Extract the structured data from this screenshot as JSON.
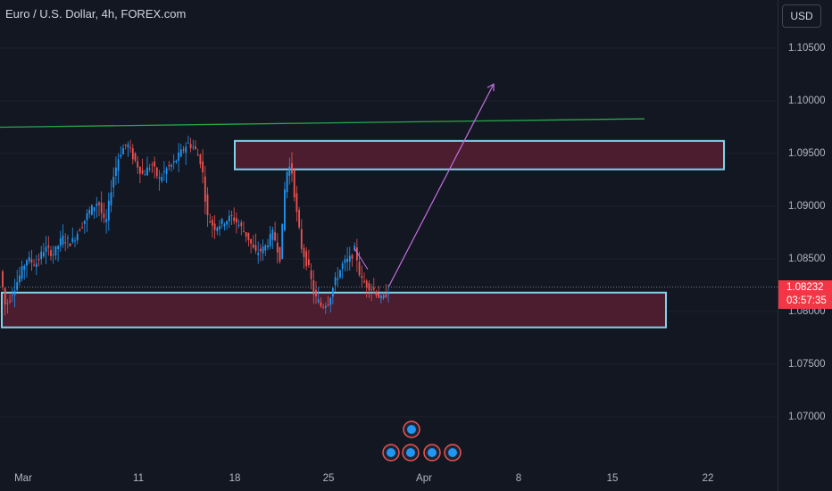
{
  "header": {
    "symbol": "Euro / U.S. Dollar",
    "interval": "4h",
    "exchange": "FOREX.com",
    "currency": "USD"
  },
  "price_axis": {
    "ticks": [
      "1.10500",
      "1.10000",
      "1.09500",
      "1.09000",
      "1.08500",
      "1.08000",
      "1.07500",
      "1.07000"
    ],
    "current_price": "1.08232",
    "countdown": "03:57:35"
  },
  "time_axis": {
    "ticks": [
      "Mar",
      "11",
      "18",
      "25",
      "Apr",
      "8",
      "15",
      "22"
    ]
  },
  "colors": {
    "background": "#131722",
    "bullish": "#2196f3",
    "bearish": "#ef5350",
    "zone_fill": "#5b1f33",
    "zone_border": "#7fd3ea",
    "trendline": "#26a64a",
    "projection": "#c36fe0",
    "price_badge": "#f23645"
  },
  "chart_data": {
    "type": "candlestick",
    "symbol": "EURUSD",
    "timeframe": "4h",
    "ylim": [
      1.068,
      1.1098
    ],
    "price_path": [
      [
        0,
        1.084
      ],
      [
        6,
        1.0805
      ],
      [
        12,
        1.0815
      ],
      [
        20,
        1.083
      ],
      [
        30,
        1.085
      ],
      [
        40,
        1.0845
      ],
      [
        50,
        1.086
      ],
      [
        60,
        1.0855
      ],
      [
        70,
        1.087
      ],
      [
        80,
        1.0865
      ],
      [
        90,
        1.088
      ],
      [
        100,
        1.0895
      ],
      [
        110,
        1.0905
      ],
      [
        118,
        1.088
      ],
      [
        126,
        1.0925
      ],
      [
        134,
        1.095
      ],
      [
        142,
        1.096
      ],
      [
        150,
        1.0945
      ],
      [
        160,
        1.093
      ],
      [
        170,
        1.094
      ],
      [
        178,
        1.0925
      ],
      [
        186,
        1.0935
      ],
      [
        194,
        1.094
      ],
      [
        202,
        1.095
      ],
      [
        210,
        1.096
      ],
      [
        218,
        1.0955
      ],
      [
        226,
        1.094
      ],
      [
        232,
        1.089
      ],
      [
        240,
        1.088
      ],
      [
        250,
        1.0885
      ],
      [
        260,
        1.089
      ],
      [
        270,
        1.088
      ],
      [
        278,
        1.087
      ],
      [
        286,
        1.0855
      ],
      [
        296,
        1.086
      ],
      [
        306,
        1.0875
      ],
      [
        314,
        1.085
      ],
      [
        320,
        1.093
      ],
      [
        326,
        1.094
      ],
      [
        332,
        1.0895
      ],
      [
        338,
        1.086
      ],
      [
        346,
        1.084
      ],
      [
        352,
        1.0815
      ],
      [
        360,
        1.0805
      ],
      [
        368,
        1.081
      ],
      [
        376,
        1.083
      ],
      [
        384,
        1.0845
      ],
      [
        392,
        1.085
      ],
      [
        398,
        1.086
      ],
      [
        404,
        1.083
      ],
      [
        412,
        1.0825
      ],
      [
        420,
        1.082
      ],
      [
        428,
        1.081
      ],
      [
        436,
        1.0823
      ]
    ],
    "annotations": {
      "resistance_zone": [
        1.0935,
        1.0962
      ],
      "support_zone": [
        1.0785,
        1.0818
      ],
      "trendline": [
        [
          1.0975,
          "Mar"
        ],
        [
          1.0983,
          "15"
        ]
      ],
      "projection_target": 1.1016
    }
  }
}
